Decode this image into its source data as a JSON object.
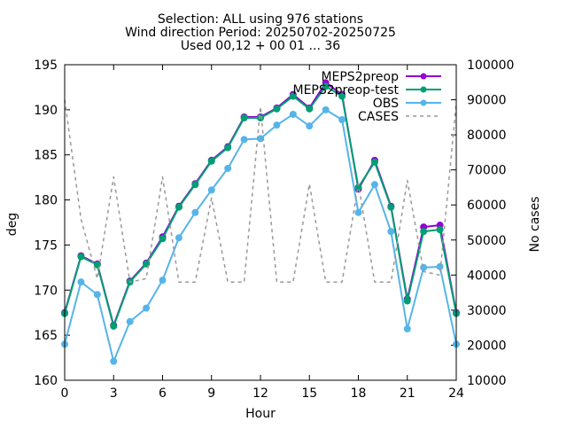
{
  "chart_data": {
    "type": "line",
    "title_lines": [
      "Selection: ALL using   976 stations",
      "Wind direction   Period: 20250702-20250725",
      "Used 00,12 + 00 01 ... 36"
    ],
    "xlabel": "Hour",
    "ylabel": "deg",
    "y2label": "No cases",
    "xlim": [
      0,
      24
    ],
    "ylim": [
      160,
      195
    ],
    "y2lim": [
      10000,
      100000
    ],
    "xticks": [
      0,
      3,
      6,
      9,
      12,
      15,
      18,
      21,
      24
    ],
    "yticks": [
      160,
      165,
      170,
      175,
      180,
      185,
      190,
      195
    ],
    "y2ticks": [
      10000,
      20000,
      30000,
      40000,
      50000,
      60000,
      70000,
      80000,
      90000,
      100000
    ],
    "legend_position": "top-right",
    "grid": false,
    "x": [
      0,
      1,
      2,
      3,
      4,
      5,
      6,
      7,
      8,
      9,
      10,
      11,
      12,
      13,
      14,
      15,
      16,
      17,
      18,
      19,
      20,
      21,
      22,
      23,
      24
    ],
    "series": [
      {
        "name": "MEPS2preop",
        "color": "#9400d3",
        "axis": "y1",
        "style": "solid",
        "marker": "circle",
        "values": [
          167.5,
          173.8,
          172.9,
          166.1,
          171.0,
          173.0,
          175.9,
          179.3,
          181.8,
          184.4,
          185.9,
          189.2,
          189.2,
          190.2,
          191.7,
          190.2,
          193.0,
          191.7,
          181.2,
          184.4,
          179.3,
          169.0,
          177.0,
          177.2,
          167.5
        ]
      },
      {
        "name": "MEPS2preop-test",
        "color": "#009e73",
        "axis": "y1",
        "style": "solid",
        "marker": "circle",
        "values": [
          167.4,
          173.7,
          172.8,
          166.0,
          170.9,
          172.9,
          175.7,
          179.2,
          181.7,
          184.3,
          185.8,
          189.1,
          189.1,
          190.1,
          191.5,
          190.1,
          192.6,
          191.5,
          181.4,
          184.2,
          179.2,
          168.8,
          176.5,
          176.7,
          167.4
        ]
      },
      {
        "name": "OBS",
        "color": "#56b4e9",
        "axis": "y1",
        "style": "solid",
        "marker": "circle",
        "values": [
          164.0,
          170.9,
          169.5,
          162.1,
          166.5,
          168.0,
          171.1,
          175.8,
          178.6,
          181.1,
          183.5,
          186.7,
          186.8,
          188.3,
          189.5,
          188.2,
          190.0,
          188.9,
          178.6,
          181.7,
          176.5,
          165.7,
          172.5,
          172.6,
          164.0
        ]
      },
      {
        "name": "CASES",
        "color": "#999999",
        "axis": "y2",
        "style": "dashed",
        "marker": "none",
        "values": [
          90000,
          56000,
          39000,
          68000,
          38000,
          39000,
          68000,
          38000,
          38000,
          62000,
          38000,
          38000,
          88000,
          38000,
          38000,
          66000,
          38000,
          38000,
          66000,
          38000,
          38000,
          67000,
          41000,
          40000,
          89000
        ]
      }
    ]
  }
}
